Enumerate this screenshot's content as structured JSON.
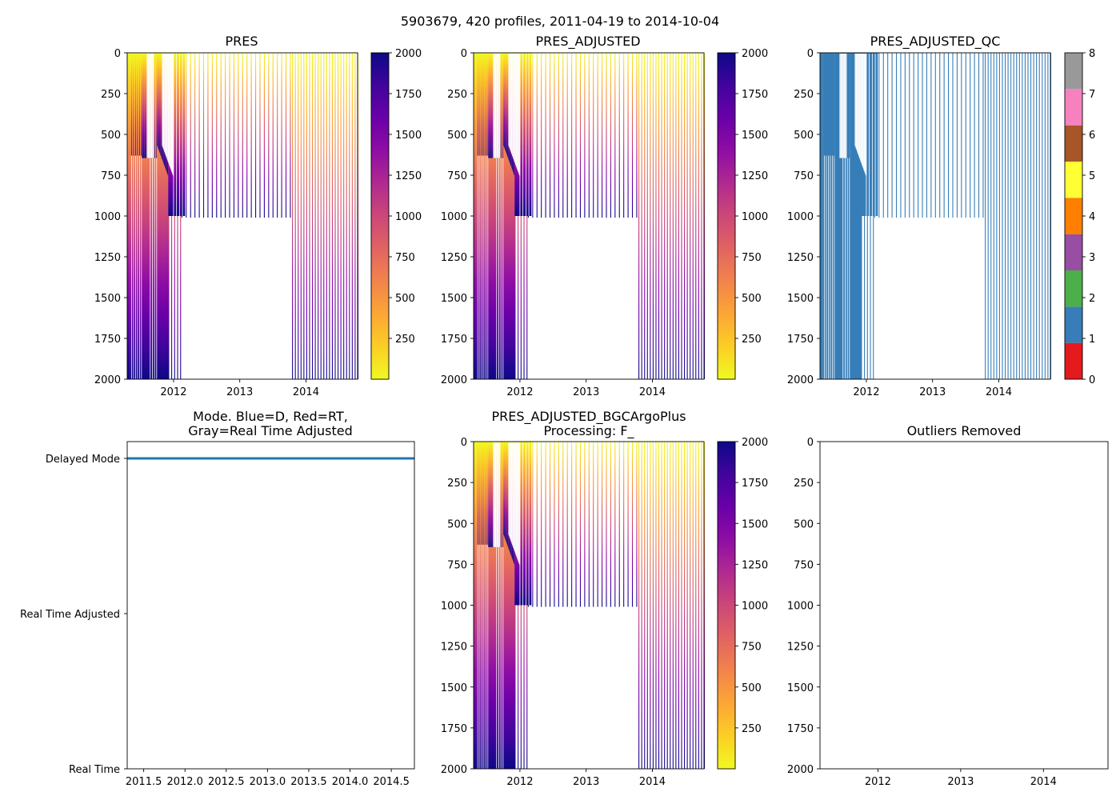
{
  "figure": {
    "title": "5903679, 420 profiles, 2011-04-19 to 2014-10-04",
    "dpi_note": ""
  },
  "colormaps": {
    "plasma": [
      "#0d0887",
      "#41049d",
      "#6a00a8",
      "#8f0da4",
      "#b12a90",
      "#cc4778",
      "#e16462",
      "#f2844b",
      "#fca636",
      "#fcce25",
      "#f0f921"
    ],
    "qc_colors": [
      "#e41a1c",
      "#377eb8",
      "#4daf4a",
      "#984ea3",
      "#ff7f00",
      "#ffff33",
      "#a65628",
      "#f781bf",
      "#999999"
    ],
    "profile_blue": "#3a7ab8",
    "mode_blue": "#1f77b4"
  },
  "chart_data": [
    {
      "id": "pres",
      "type": "heatmap",
      "title": "PRES",
      "colormap": "plasma_r",
      "ylim": [
        2000,
        0
      ],
      "yticks": [
        "0",
        "250",
        "500",
        "750",
        "1000",
        "1250",
        "1500",
        "1750",
        "2000"
      ],
      "xlim": [
        2011.3,
        2014.78
      ],
      "xticks": [
        "2012",
        "2013",
        "2014"
      ],
      "colorbar": {
        "range": [
          0,
          2000
        ],
        "ticks": [
          "250",
          "500",
          "750",
          "1000",
          "1250",
          "1500",
          "1750",
          "2000"
        ]
      }
    },
    {
      "id": "pres-adjusted",
      "type": "heatmap",
      "title": "PRES_ADJUSTED",
      "colormap": "plasma_r",
      "ylim": [
        2000,
        0
      ],
      "yticks": [
        "0",
        "250",
        "500",
        "750",
        "1000",
        "1250",
        "1500",
        "1750",
        "2000"
      ],
      "xlim": [
        2011.3,
        2014.78
      ],
      "xticks": [
        "2012",
        "2013",
        "2014"
      ],
      "colorbar": {
        "range": [
          0,
          2000
        ],
        "ticks": [
          "250",
          "500",
          "750",
          "1000",
          "1250",
          "1500",
          "1750",
          "2000"
        ]
      }
    },
    {
      "id": "pres-adjusted-qc",
      "type": "heatmap",
      "title": "PRES_ADJUSTED_QC",
      "colormap": "qc",
      "qc_value": 1,
      "ylim": [
        2000,
        0
      ],
      "yticks": [
        "0",
        "250",
        "500",
        "750",
        "1000",
        "1250",
        "1500",
        "1750",
        "2000"
      ],
      "xlim": [
        2011.3,
        2014.78
      ],
      "xticks": [
        "2012",
        "2013",
        "2014"
      ],
      "colorbar": {
        "range": [
          0,
          8
        ],
        "ticks": [
          "0",
          "1",
          "2",
          "3",
          "4",
          "5",
          "6",
          "7",
          "8"
        ]
      }
    },
    {
      "id": "mode",
      "type": "scatter",
      "title": "Mode. Blue=D, Red=RT,",
      "title_line2": "Gray=Real Time Adjusted",
      "xlim": [
        2011.3,
        2014.78
      ],
      "xticks": [
        "2011.5",
        "2012.0",
        "2012.5",
        "2013.0",
        "2013.5",
        "2014.0",
        "2014.5"
      ],
      "ycategories": [
        "Delayed Mode",
        "Real Time Adjusted",
        "Real Time"
      ],
      "series": [
        {
          "name": "Delayed Mode",
          "mode": "D",
          "from": 2011.3,
          "to": 2014.78
        }
      ]
    },
    {
      "id": "pres-bgc",
      "type": "heatmap",
      "title": "PRES_ADJUSTED_BGCArgoPlus",
      "title_line2": "Processing: F_",
      "colormap": "plasma_r",
      "ylim": [
        2000,
        0
      ],
      "yticks": [
        "0",
        "250",
        "500",
        "750",
        "1000",
        "1250",
        "1500",
        "1750",
        "2000"
      ],
      "xlim": [
        2011.3,
        2014.78
      ],
      "xticks": [
        "2012",
        "2013",
        "2014"
      ],
      "colorbar": {
        "range": [
          0,
          2000
        ],
        "ticks": [
          "250",
          "500",
          "750",
          "1000",
          "1250",
          "1500",
          "1750",
          "2000"
        ]
      }
    },
    {
      "id": "outliers",
      "type": "scatter",
      "title": "Outliers Removed",
      "ylim": [
        2000,
        0
      ],
      "yticks": [
        "0",
        "250",
        "500",
        "750",
        "1000",
        "1250",
        "1500",
        "1750",
        "2000"
      ],
      "xlim": [
        2011.3,
        2014.78
      ],
      "xticks": [
        "2012",
        "2013",
        "2014"
      ],
      "points": []
    }
  ],
  "profile_segments": [
    {
      "from": 2011.3,
      "to": 2011.34,
      "pattern": "solid",
      "depth": 2000
    },
    {
      "from": 2011.34,
      "to": 2011.52,
      "pattern": "fill",
      "depth": 2000,
      "shallow": 630
    },
    {
      "from": 2011.52,
      "to": 2011.62,
      "pattern": "dense",
      "step": 0.009,
      "depth": 2000,
      "shallow": 645
    },
    {
      "from": 2011.62,
      "to": 2011.75,
      "pattern": "fill",
      "depth": 2000,
      "shallow": 645
    },
    {
      "from": 2011.75,
      "to": 2011.92,
      "pattern": "dense",
      "step": 0.008,
      "depth": 2000,
      "shallow_from": 570,
      "shallow_to": 760
    },
    {
      "from": 2011.92,
      "to": 2012.12,
      "pattern": "sparse",
      "step": 0.045,
      "depth": 2000,
      "shallow": 1000
    },
    {
      "from": 2012.12,
      "to": 2013.78,
      "pattern": "sparse",
      "step": 0.0655,
      "depth": 1010
    },
    {
      "from": 2013.79,
      "to": 2014.78,
      "pattern": "sparse",
      "step": 0.043,
      "depth": 2000
    }
  ]
}
